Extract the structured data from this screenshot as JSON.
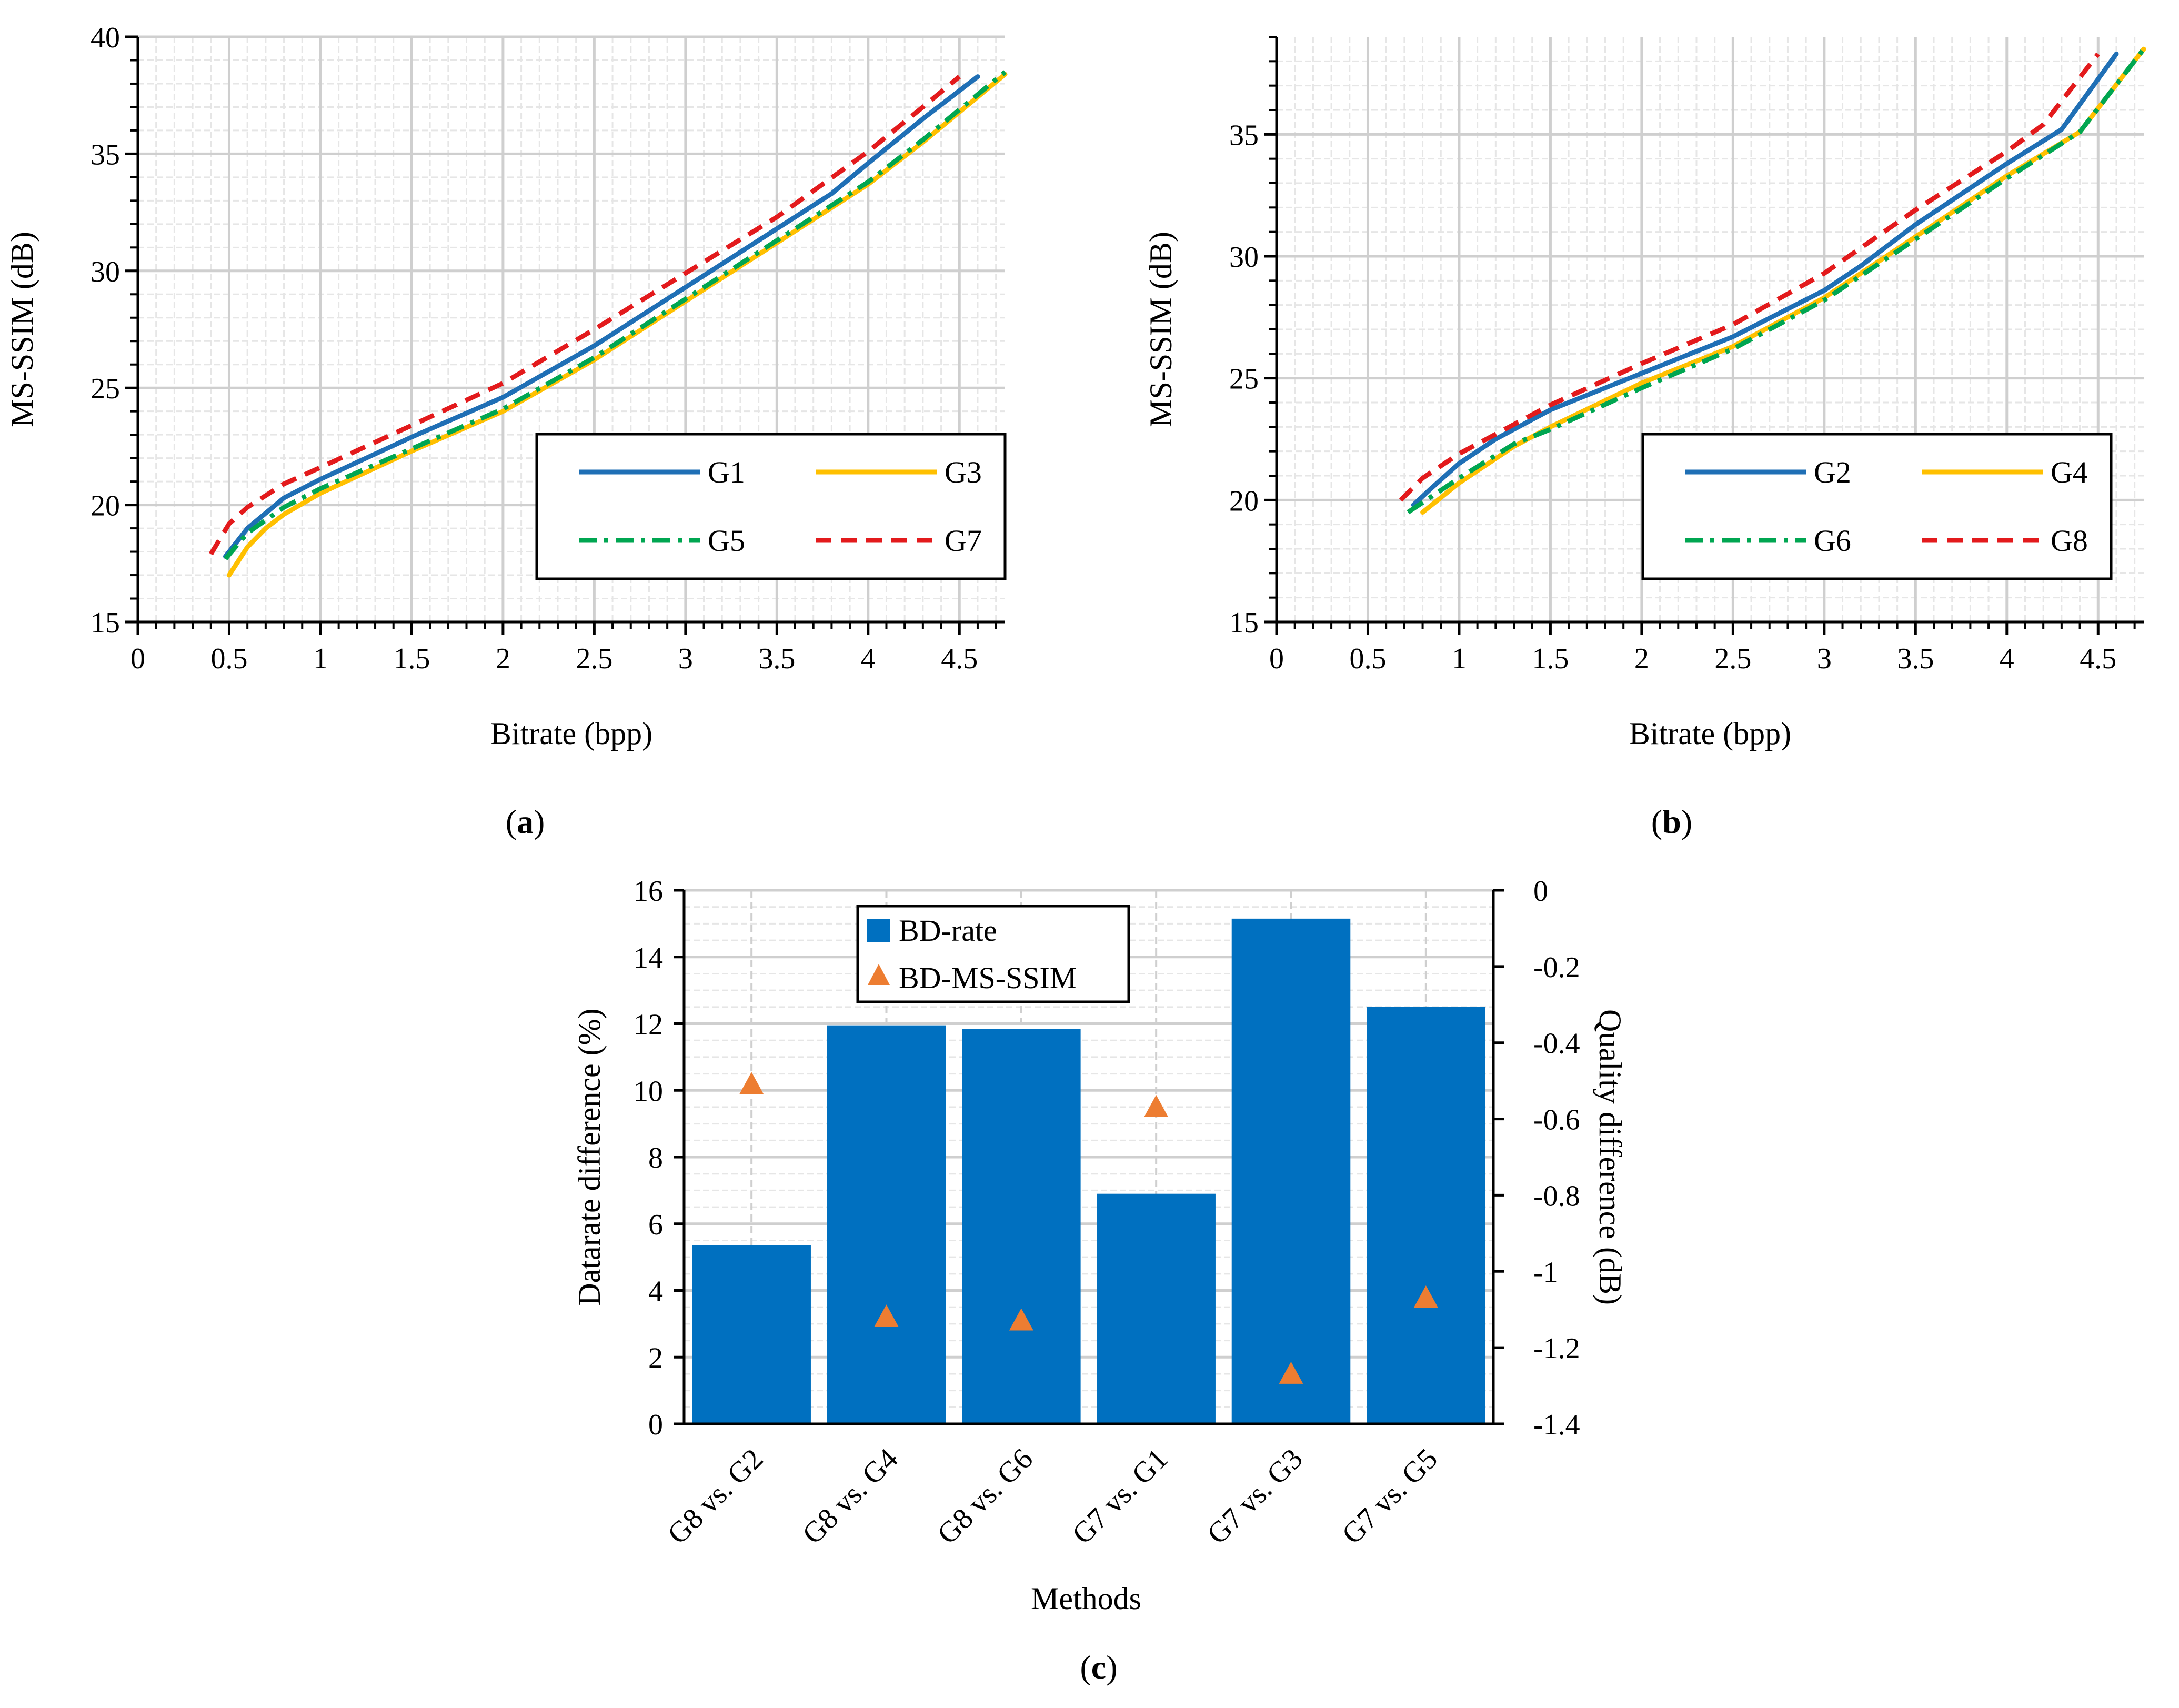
{
  "chart_data": [
    {
      "id": "a",
      "type": "line",
      "panel_label": "a",
      "xlabel": "Bitrate (bpp)",
      "ylabel": "MS-SSIM (dB)",
      "xlim": [
        0,
        4.75
      ],
      "ylim": [
        15,
        40
      ],
      "xticks": [
        "0",
        "0.5",
        "1",
        "1.5",
        "2",
        "2.5",
        "3",
        "3.5",
        "4",
        "4.5"
      ],
      "yticks": [
        "15",
        "20",
        "25",
        "30",
        "35",
        "40"
      ],
      "grid": true,
      "legend_position": "bottom-right",
      "series": [
        {
          "name": "G1",
          "color": "#1f6fb5",
          "style": "solid",
          "x": [
            0.48,
            0.6,
            0.8,
            1.0,
            1.5,
            2.0,
            2.5,
            3.0,
            3.5,
            3.8,
            4.0,
            4.3,
            4.6
          ],
          "y": [
            17.8,
            19.0,
            20.3,
            21.1,
            22.9,
            24.6,
            26.8,
            29.3,
            31.8,
            33.3,
            34.6,
            36.5,
            38.3
          ]
        },
        {
          "name": "G3",
          "color": "#ffc000",
          "style": "solid",
          "x": [
            0.5,
            0.6,
            0.7,
            0.8,
            1.0,
            1.5,
            2.0,
            2.5,
            3.0,
            3.5,
            4.0,
            4.3,
            4.75
          ],
          "y": [
            17.0,
            18.2,
            19.0,
            19.6,
            20.5,
            22.3,
            24.0,
            26.2,
            28.7,
            31.2,
            33.7,
            35.5,
            38.4
          ]
        },
        {
          "name": "G5",
          "color": "#00a651",
          "style": "dashdot",
          "x": [
            0.48,
            0.6,
            0.8,
            1.0,
            1.5,
            2.0,
            2.5,
            3.0,
            3.5,
            4.0,
            4.3,
            4.75
          ],
          "y": [
            17.7,
            18.8,
            19.9,
            20.7,
            22.4,
            24.1,
            26.3,
            28.8,
            31.3,
            33.8,
            35.6,
            38.5
          ]
        },
        {
          "name": "G7",
          "color": "#e31a1c",
          "style": "dashed",
          "x": [
            0.4,
            0.5,
            0.6,
            0.8,
            1.0,
            1.5,
            2.0,
            2.5,
            3.0,
            3.5,
            4.0,
            4.3,
            4.5
          ],
          "y": [
            17.9,
            19.2,
            19.9,
            20.9,
            21.6,
            23.4,
            25.2,
            27.5,
            29.9,
            32.3,
            35.1,
            37.0,
            38.3
          ]
        }
      ]
    },
    {
      "id": "b",
      "type": "line",
      "panel_label": "b",
      "xlabel": "Bitrate (bpp)",
      "ylabel": "MS-SSIM (dB)",
      "xlim": [
        0,
        4.75
      ],
      "ylim": [
        15,
        39
      ],
      "xticks": [
        "0",
        "0.5",
        "1",
        "1.5",
        "2",
        "2.5",
        "3",
        "3.5",
        "4",
        "4.5"
      ],
      "yticks": [
        "15",
        "20",
        "25",
        "30",
        "35"
      ],
      "grid": true,
      "legend_position": "bottom-right",
      "series": [
        {
          "name": "G2",
          "color": "#1f6fb5",
          "style": "solid",
          "x": [
            0.75,
            0.85,
            1.0,
            1.2,
            1.5,
            2.0,
            2.5,
            3.0,
            3.2,
            3.5,
            4.0,
            4.3,
            4.6
          ],
          "y": [
            19.8,
            20.5,
            21.5,
            22.5,
            23.7,
            25.2,
            26.7,
            28.6,
            29.6,
            31.3,
            33.8,
            35.2,
            38.3
          ]
        },
        {
          "name": "G4",
          "color": "#ffc000",
          "style": "solid",
          "x": [
            0.8,
            1.0,
            1.3,
            1.5,
            2.0,
            2.5,
            3.0,
            3.5,
            4.0,
            4.4,
            4.75
          ],
          "y": [
            19.5,
            20.7,
            22.2,
            23.0,
            24.8,
            26.3,
            28.3,
            30.8,
            33.3,
            35.1,
            38.5
          ]
        },
        {
          "name": "G6",
          "color": "#00a651",
          "style": "dashdot",
          "x": [
            0.72,
            0.9,
            1.0,
            1.3,
            1.5,
            2.0,
            2.5,
            3.0,
            3.5,
            4.0,
            4.4,
            4.75
          ],
          "y": [
            19.5,
            20.4,
            20.9,
            22.3,
            22.9,
            24.6,
            26.2,
            28.2,
            30.7,
            33.2,
            35.1,
            38.5
          ]
        },
        {
          "name": "G8",
          "color": "#e31a1c",
          "style": "dashed",
          "x": [
            0.68,
            0.8,
            1.0,
            1.3,
            1.5,
            2.0,
            2.5,
            3.0,
            3.5,
            4.0,
            4.2,
            4.5
          ],
          "y": [
            20.0,
            20.9,
            21.9,
            23.1,
            23.9,
            25.6,
            27.2,
            29.3,
            31.9,
            34.3,
            35.4,
            38.3
          ]
        }
      ]
    },
    {
      "id": "c",
      "type": "bar",
      "panel_label": "c",
      "xlabel": "Methods",
      "ylabel": "Datarate difference  (%)",
      "y2label": "Quality difference (dB)",
      "categories": [
        "G8 vs. G2",
        "G8 vs. G4",
        "G8 vs. G6",
        "G7 vs. G1",
        "G7 vs. G3",
        "G7 vs. G5"
      ],
      "ylim": [
        0,
        16
      ],
      "y2lim": [
        -1.4,
        0
      ],
      "yticks": [
        "0",
        "2",
        "4",
        "6",
        "8",
        "10",
        "12",
        "14",
        "16"
      ],
      "y2ticks": [
        "0",
        "-0.2",
        "-0.4",
        "-0.6",
        "-0.8",
        "-1",
        "-1.2",
        "-1.4"
      ],
      "grid": true,
      "legend_position": "top-center",
      "series": [
        {
          "name": "BD-rate",
          "kind": "bar",
          "axis": "left",
          "color": "#0070c0",
          "values": [
            5.35,
            11.95,
            11.85,
            6.9,
            15.15,
            12.5
          ]
        },
        {
          "name": "BD-MS-SSIM",
          "kind": "marker",
          "axis": "right",
          "color": "#ed7d31",
          "values": [
            -0.51,
            -1.12,
            -1.13,
            -0.57,
            -1.27,
            -1.07
          ]
        }
      ]
    }
  ]
}
